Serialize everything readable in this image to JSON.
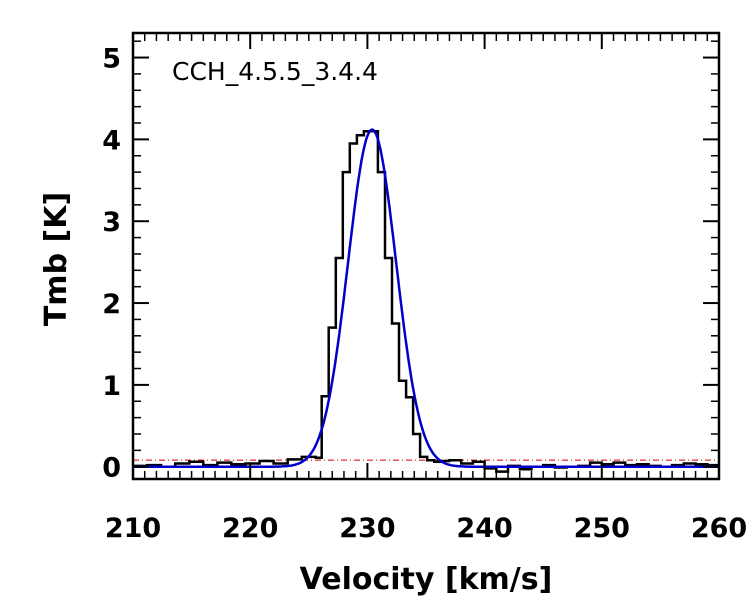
{
  "chart_data": {
    "type": "line",
    "title": "",
    "annotation": "CCH_4.5.5_3.4.4",
    "xlabel": "Velocity [km/s]",
    "ylabel": "Tmb [K]",
    "xlim": [
      210,
      260
    ],
    "ylim": [
      -0.15,
      5.3
    ],
    "x_ticks": [
      210,
      220,
      230,
      240,
      250,
      260
    ],
    "y_ticks": [
      0,
      1,
      2,
      3,
      4,
      5
    ],
    "x_tick_labels": [
      "210",
      "220",
      "230",
      "240",
      "250",
      "260"
    ],
    "y_tick_labels": [
      "0",
      "1",
      "2",
      "3",
      "4",
      "5"
    ],
    "grid": false,
    "series": [
      {
        "name": "observed spectrum",
        "style": "histogram",
        "color": "#000000",
        "x": [
          210.0,
          211.2,
          212.4,
          213.6,
          214.8,
          216.0,
          217.2,
          218.4,
          219.6,
          220.8,
          222.0,
          223.2,
          224.4,
          225.6,
          226.1,
          226.7,
          227.3,
          227.9,
          228.5,
          229.1,
          229.7,
          230.3,
          230.9,
          231.5,
          232.1,
          232.7,
          233.3,
          233.9,
          234.5,
          235.1,
          235.7,
          236.3,
          237.0,
          238.0,
          239.0,
          240.0,
          241.0,
          242.0,
          243.0,
          244.0,
          245.0,
          246.0,
          247.0,
          248.0,
          249.0,
          250.0,
          251.0,
          252.0,
          253.0,
          254.0,
          255.0,
          256.0,
          257.0,
          258.0,
          259.0
        ],
        "values": [
          0.01,
          0.02,
          0.0,
          0.04,
          0.06,
          0.02,
          0.05,
          0.03,
          0.04,
          0.07,
          0.04,
          0.09,
          0.12,
          0.11,
          0.86,
          1.7,
          2.55,
          3.6,
          3.95,
          4.05,
          4.1,
          4.1,
          3.6,
          2.55,
          1.75,
          1.05,
          0.85,
          0.4,
          0.12,
          0.08,
          0.06,
          0.07,
          0.08,
          0.04,
          0.06,
          -0.02,
          -0.06,
          0.01,
          -0.03,
          0.0,
          0.02,
          -0.01,
          0.0,
          0.01,
          0.05,
          0.03,
          0.05,
          0.02,
          0.03,
          0.01,
          0.0,
          0.02,
          0.04,
          0.03,
          0.02
        ]
      },
      {
        "name": "gaussian fit",
        "style": "line",
        "color": "#0000cc",
        "amplitude": 4.12,
        "center": 230.4,
        "sigma": 2.05
      },
      {
        "name": "reference level",
        "style": "dash-dot",
        "color": "#cc0000",
        "value": 0.08
      }
    ]
  }
}
